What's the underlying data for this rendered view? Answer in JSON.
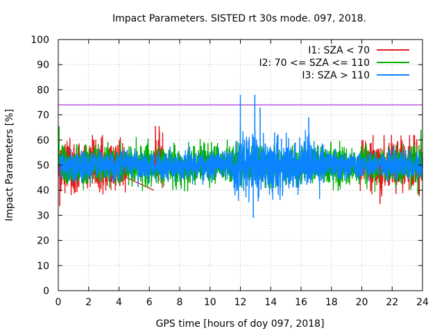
{
  "chart_data": {
    "type": "line",
    "title": "Impact Parameters. SISTED rt 30s mode. 097, 2018.",
    "xlabel": "GPS time [hours of doy 097, 2018]",
    "ylabel": "Impact Parameters [%]",
    "xlim": [
      0,
      24
    ],
    "ylim": [
      0,
      100
    ],
    "xticks": [
      0,
      2,
      4,
      6,
      8,
      10,
      12,
      14,
      16,
      18,
      20,
      22,
      24
    ],
    "yticks": [
      0,
      10,
      20,
      30,
      40,
      50,
      60,
      70,
      80,
      90,
      100
    ],
    "grid": true,
    "legend_position": "top-right",
    "reference_line": {
      "y": 74,
      "color": "#9400d3"
    },
    "series": [
      {
        "name": "I1: SZA < 70",
        "color": "#e41a1c",
        "segments": [
          {
            "x_start": 0.0,
            "x_end": 4.5,
            "mean": 50,
            "spread": 9,
            "min": 33.7,
            "max": 62
          },
          {
            "x_start": 6.4,
            "x_end": 6.9,
            "mean": 52,
            "spread": 8,
            "min": 38,
            "max": 65.5
          },
          {
            "x_start": 19.9,
            "x_end": 24.0,
            "mean": 50,
            "spread": 9,
            "min": 34.5,
            "max": 62
          }
        ],
        "connector": [
          [
            4.5,
            45
          ],
          [
            6.3,
            40
          ]
        ]
      },
      {
        "name": "I2: 70 <= SZA <= 110",
        "color": "#00b000",
        "segments": [
          {
            "x_start": 0.0,
            "x_end": 24.0,
            "mean": 50,
            "spread": 7,
            "min": 37,
            "max": 65.5
          }
        ]
      },
      {
        "name": "I3: SZA > 110",
        "color": "#0a84ff",
        "segments": [
          {
            "x_start": 0.0,
            "x_end": 24.0,
            "mean": 50,
            "spread": 5,
            "min": 29,
            "max": 78
          }
        ]
      }
    ]
  }
}
